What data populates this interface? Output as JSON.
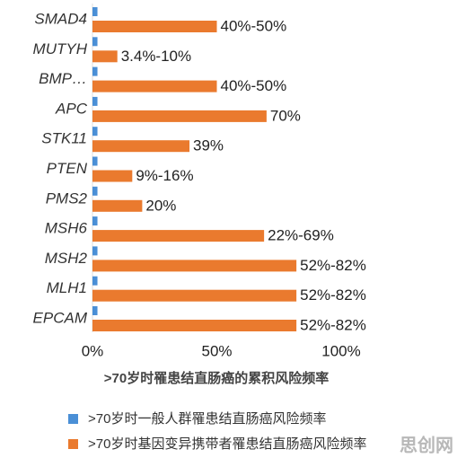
{
  "chart_data": {
    "type": "hbar",
    "categories": [
      "SMAD4",
      "MUTYH",
      "BMP…",
      "APC",
      "STK11",
      "PTEN",
      "PMS2",
      "MSH6",
      "MSH2",
      "MLH1",
      "EPCAM"
    ],
    "series": [
      {
        "name": ">70岁时一般人群罹患结直肠癌风险频率",
        "color": "#4a8fd6",
        "values": [
          2,
          2,
          2,
          2,
          2,
          2,
          2,
          2,
          2,
          2,
          2
        ]
      },
      {
        "name": ">70岁时基因变异携带者罹患结直肠癌风险频率",
        "color": "#ea7a2e",
        "values": [
          50,
          10,
          50,
          70,
          39,
          16,
          20,
          69,
          82,
          82,
          82
        ],
        "value_labels": [
          "40%-50%",
          "3.4%-10%",
          "40%-50%",
          "70%",
          "39%",
          "9%-16%",
          "20%",
          "22%-69%",
          "52%-82%",
          "52%-82%",
          "52%-82%"
        ]
      }
    ],
    "xlim": [
      0,
      100
    ],
    "xticks": [
      {
        "value": 0,
        "label": "0%"
      },
      {
        "value": 50,
        "label": "50%"
      },
      {
        "value": 100,
        "label": "100%"
      }
    ],
    "x_label": ">70岁时罹患结直肠癌的累积风险频率",
    "watermark": "思创网"
  }
}
